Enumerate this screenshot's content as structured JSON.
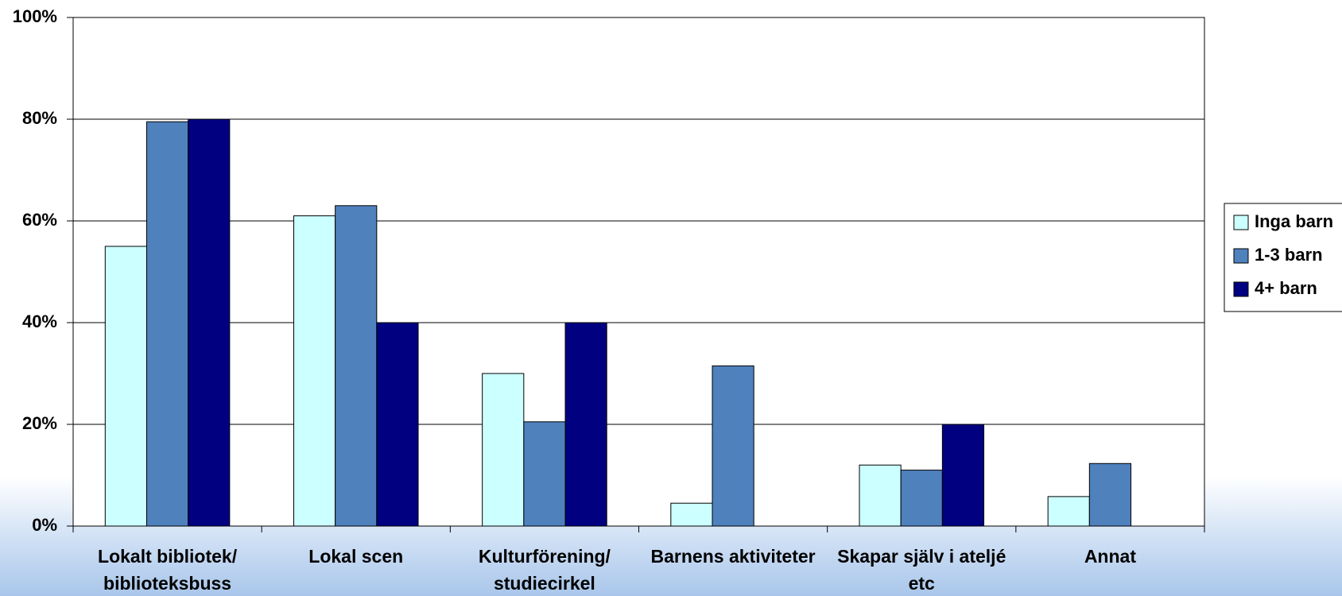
{
  "chart_data": {
    "type": "bar",
    "categories": [
      "Lokalt bibliotek/ biblioteksbuss",
      "Lokal scen",
      "Kulturförening/ studiecirkel",
      "Barnens aktiviteter",
      "Skapar själv i ateljé etc",
      "Annat"
    ],
    "series": [
      {
        "name": "Inga barn",
        "color": "#ccffff",
        "values": [
          55,
          61,
          30,
          4.5,
          12,
          5.8
        ]
      },
      {
        "name": "1-3 barn",
        "color": "#4f81bd",
        "values": [
          79.5,
          63,
          20.5,
          31.5,
          11,
          12.3
        ]
      },
      {
        "name": "4+ barn",
        "color": "#000080",
        "values": [
          80,
          40,
          40,
          0,
          20,
          0
        ]
      }
    ],
    "ylim": [
      0,
      100
    ],
    "yticks": [
      {
        "value": 0,
        "label": "0%"
      },
      {
        "value": 20,
        "label": "20%"
      },
      {
        "value": 40,
        "label": "40%"
      },
      {
        "value": 60,
        "label": "60%"
      },
      {
        "value": 80,
        "label": "80%"
      },
      {
        "value": 100,
        "label": "100%"
      }
    ],
    "grid": true,
    "legend": "right"
  }
}
